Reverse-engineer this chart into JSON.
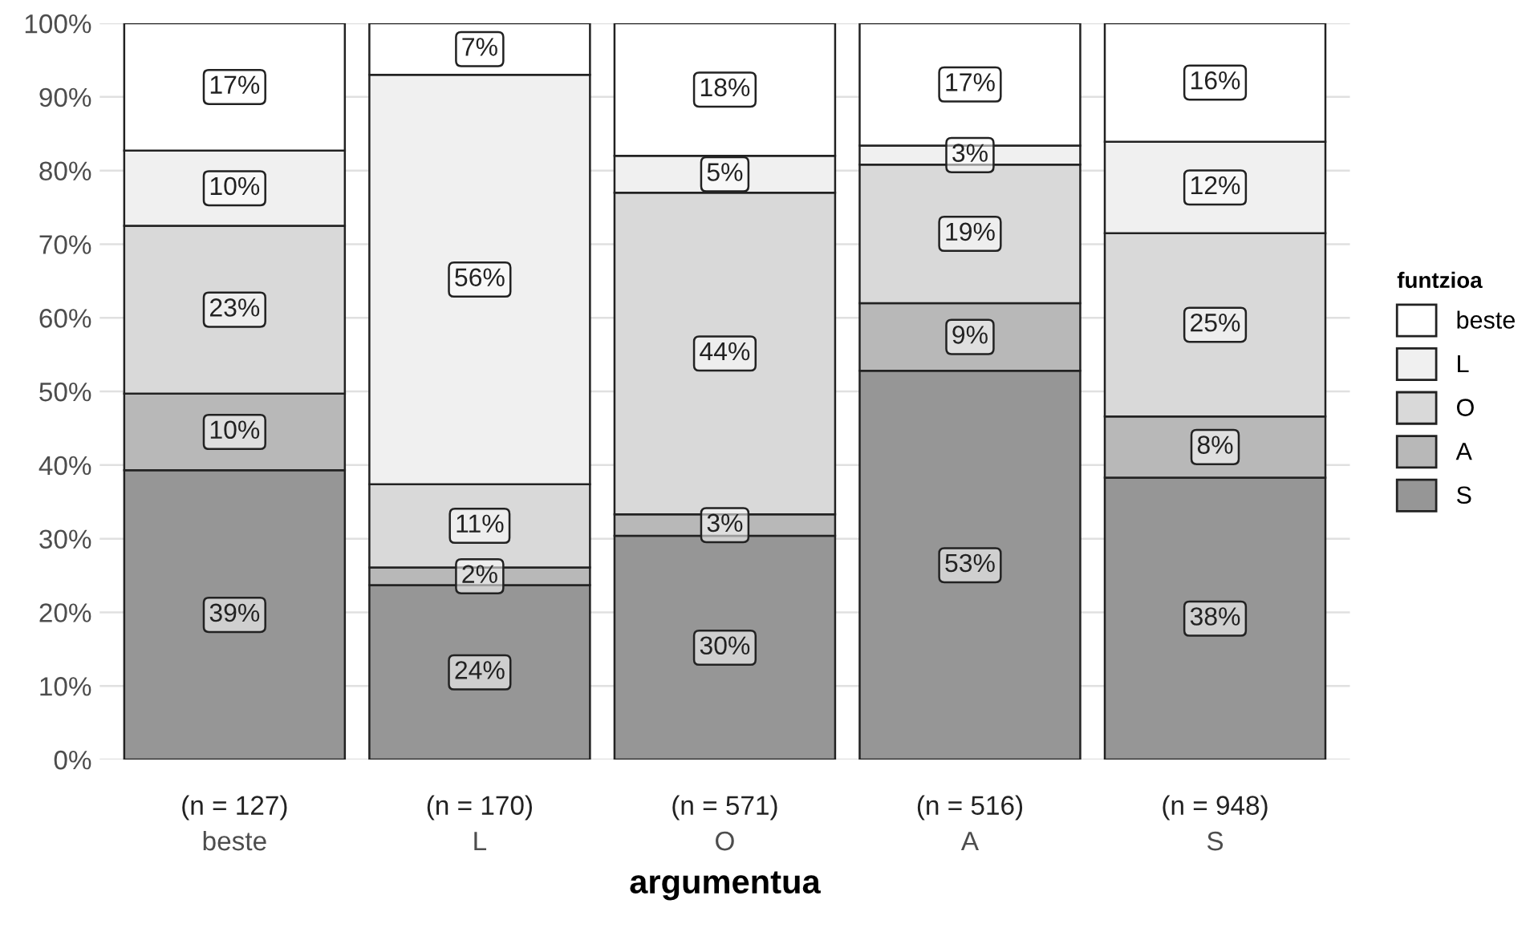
{
  "chart_data": {
    "type": "bar",
    "stacked": true,
    "xlabel": "argumentua",
    "legend_title": "funtzioa",
    "legend": "right",
    "grid": "y",
    "categories": [
      "beste",
      "L",
      "O",
      "A",
      "S"
    ],
    "series": [
      {
        "name": "S",
        "color": "#969696",
        "values": [
          39.3,
          23.7,
          30.4,
          52.8,
          38.3
        ],
        "value_labels": [
          "39%",
          "24%",
          "30%",
          "53%",
          "38%"
        ]
      },
      {
        "name": "A",
        "color": "#b8b8b8",
        "values": [
          10.4,
          2.4,
          2.9,
          9.2,
          8.3
        ],
        "value_labels": [
          "10%",
          "2%",
          "3%",
          "9%",
          "8%"
        ]
      },
      {
        "name": "O",
        "color": "#d9d9d9",
        "values": [
          22.8,
          11.3,
          43.7,
          18.8,
          24.9
        ],
        "value_labels": [
          "23%",
          "11%",
          "44%",
          "19%",
          "25%"
        ]
      },
      {
        "name": "L",
        "color": "#f0f0f0",
        "values": [
          10.2,
          55.6,
          5.0,
          2.6,
          12.4
        ],
        "value_labels": [
          "10%",
          "56%",
          "5%",
          "3%",
          "12%"
        ]
      },
      {
        "name": "beste",
        "color": "#ffffff",
        "values": [
          17.3,
          7.0,
          18.0,
          16.6,
          16.1
        ],
        "value_labels": [
          "17%",
          "7%",
          "18%",
          "17%",
          "16%"
        ]
      }
    ],
    "ylim": [
      0,
      100
    ],
    "yticks": [
      {
        "value": 0,
        "label": "0%"
      },
      {
        "value": 10,
        "label": "10%"
      },
      {
        "value": 20,
        "label": "20%"
      },
      {
        "value": 30,
        "label": "30%"
      },
      {
        "value": 40,
        "label": "40%"
      },
      {
        "value": 50,
        "label": "50%"
      },
      {
        "value": 60,
        "label": "60%"
      },
      {
        "value": 70,
        "label": "70%"
      },
      {
        "value": 80,
        "label": "80%"
      },
      {
        "value": 90,
        "label": "90%"
      },
      {
        "value": 100,
        "label": "100%"
      }
    ],
    "annotations": [
      "(n = 127)",
      "(n = 170)",
      "(n = 571)",
      "(n = 516)",
      "(n = 948)"
    ]
  }
}
